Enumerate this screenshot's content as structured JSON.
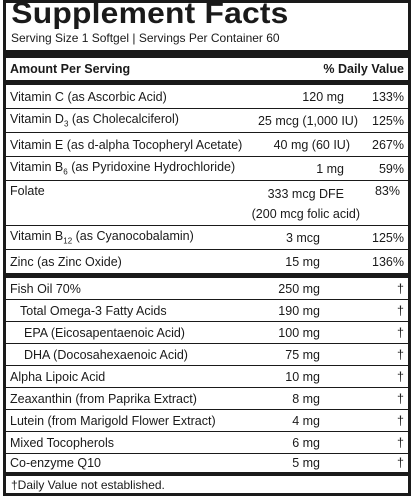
{
  "title": "Supplement Facts",
  "serving": "Serving Size 1 Softgel  |  Servings Per Container 60",
  "header": {
    "amount": "Amount Per Serving",
    "dv": "% Daily Value"
  },
  "vitamins": [
    {
      "pre": "Vitamin C",
      "sub": "",
      "post": " (as Ascorbic Acid)",
      "amount": "120 mg",
      "dv": "133%"
    },
    {
      "pre": "Vitamin D",
      "sub": "3",
      "post": " (as Cholecalciferol)",
      "amount": "25 mcg (1,000 IU)",
      "dv": "125%"
    },
    {
      "pre": "Vitamin E (as d-alpha Tocopheryl Acetate)",
      "sub": "",
      "post": "",
      "amount": "40 mg (60 IU)",
      "dv": "267%"
    },
    {
      "pre": "Vitamin B",
      "sub": "6",
      "post": " (as Pyridoxine Hydrochloride)",
      "amount": "1 mg",
      "dv": "59%"
    }
  ],
  "folate": {
    "name": "Folate",
    "amount": "333 mcg DFE",
    "amount2": "(200 mcg folic acid)",
    "dv": "83%"
  },
  "b12": {
    "pre": "Vitamin B",
    "sub": "12",
    "post": " (as Cyanocobalamin)",
    "amount": "3 mcg",
    "dv": "125%"
  },
  "zinc": {
    "name": "Zinc (as Zinc Oxide)",
    "amount": "15 mg",
    "dv": "136%"
  },
  "others": [
    {
      "name": "Fish Oil 70%",
      "amount": "250 mg",
      "dv": "†",
      "indent": 0
    },
    {
      "name": "Total Omega-3 Fatty Acids",
      "amount": "190 mg",
      "dv": "†",
      "indent": 1
    },
    {
      "name": "EPA (Eicosapentaenoic Acid)",
      "amount": "100 mg",
      "dv": "†",
      "indent": 2
    },
    {
      "name": "DHA (Docosahexaenoic Acid)",
      "amount": "75 mg",
      "dv": "†",
      "indent": 2
    },
    {
      "name": "Alpha Lipoic Acid",
      "amount": "10 mg",
      "dv": "†",
      "indent": 0
    },
    {
      "name": "Zeaxanthin (from Paprika Extract)",
      "amount": "8 mg",
      "dv": "†",
      "indent": 0
    },
    {
      "name": "Lutein (from Marigold Flower Extract)",
      "amount": "4 mg",
      "dv": "†",
      "indent": 0
    },
    {
      "name": "Mixed Tocopherols",
      "amount": "6 mg",
      "dv": "†",
      "indent": 0
    },
    {
      "name": "Co-enzyme Q10",
      "amount": "5 mg",
      "dv": "†",
      "indent": 0
    }
  ],
  "footnote": "†Daily Value not established."
}
